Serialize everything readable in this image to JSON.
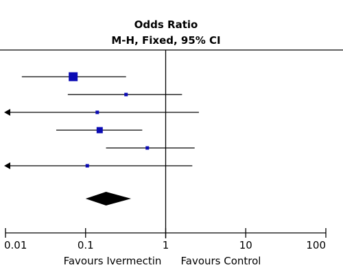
{
  "chart_data": {
    "type": "forest",
    "title": "Odds Ratio",
    "subtitle": "M-H, Fixed, 95% CI",
    "x_scale": "log",
    "xlim": [
      0.01,
      100
    ],
    "ticks": [
      {
        "value": 0.01,
        "label": "0.01"
      },
      {
        "value": 0.1,
        "label": "0.1"
      },
      {
        "value": 1,
        "label": "1"
      },
      {
        "value": 10,
        "label": "10"
      },
      {
        "value": 100,
        "label": "100"
      }
    ],
    "reference_line": 1,
    "favours_left": "Favours Ivermectin",
    "favours_right": "Favours Control",
    "studies": [
      {
        "or": 0.07,
        "ci": [
          0.016,
          0.32
        ],
        "weight": 3,
        "arrow_left": false
      },
      {
        "or": 0.32,
        "ci": [
          0.06,
          1.6
        ],
        "weight": 1,
        "arrow_left": false
      },
      {
        "or": 0.14,
        "ci": [
          0.01,
          2.6
        ],
        "weight": 1,
        "arrow_left": true
      },
      {
        "or": 0.15,
        "ci": [
          0.043,
          0.51
        ],
        "weight": 2,
        "arrow_left": false
      },
      {
        "or": 0.59,
        "ci": [
          0.18,
          2.3
        ],
        "weight": 1,
        "arrow_left": false
      },
      {
        "or": 0.105,
        "ci": [
          0.01,
          2.15
        ],
        "weight": 1,
        "arrow_left": true
      }
    ],
    "pooled": {
      "or": 0.18,
      "ci": [
        0.1,
        0.37
      ]
    },
    "colors": {
      "marker": "#0a0ab4",
      "line": "#000000",
      "diamond": "#000000"
    }
  }
}
